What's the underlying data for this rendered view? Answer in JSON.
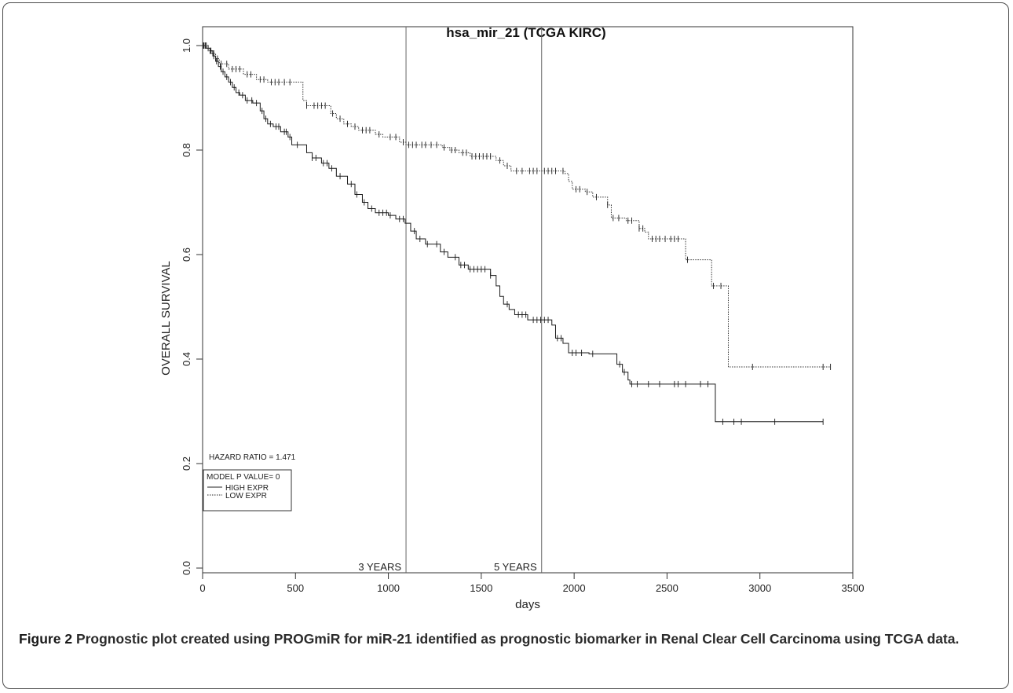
{
  "chart_data": {
    "type": "line",
    "title": "hsa_mir_21 (TCGA KIRC)",
    "xlabel": "days",
    "ylabel": "OVERALL SURVIVAL",
    "xlim": [
      0,
      3500
    ],
    "ylim": [
      0,
      1.0
    ],
    "x_ticks": [
      0,
      500,
      1000,
      1500,
      2000,
      2500,
      3000,
      3500
    ],
    "y_ticks": [
      0.0,
      0.2,
      0.4,
      0.6,
      0.8,
      1.0
    ],
    "y_tick_labels": [
      "0.0",
      "0.2",
      "0.4",
      "0.6",
      "0.8",
      "1.0"
    ],
    "grid": false,
    "vlines": [
      {
        "x": 1095,
        "label": "3 YEARS"
      },
      {
        "x": 1825,
        "label": "5 YEARS"
      }
    ],
    "annotations": {
      "hazard_ratio": "HAZARD RATIO =  1.471",
      "p_value": "MODEL P VALUE=  0"
    },
    "legend_position": "bottom-left",
    "series": [
      {
        "name": "HIGH EXPR",
        "style": "solid",
        "steps": [
          [
            0,
            1.0
          ],
          [
            20,
            0.995
          ],
          [
            40,
            0.99
          ],
          [
            55,
            0.98
          ],
          [
            70,
            0.97
          ],
          [
            85,
            0.96
          ],
          [
            100,
            0.95
          ],
          [
            120,
            0.94
          ],
          [
            140,
            0.93
          ],
          [
            160,
            0.92
          ],
          [
            180,
            0.91
          ],
          [
            200,
            0.905
          ],
          [
            230,
            0.895
          ],
          [
            270,
            0.89
          ],
          [
            310,
            0.875
          ],
          [
            330,
            0.86
          ],
          [
            350,
            0.85
          ],
          [
            380,
            0.845
          ],
          [
            420,
            0.835
          ],
          [
            460,
            0.825
          ],
          [
            480,
            0.81
          ],
          [
            560,
            0.795
          ],
          [
            590,
            0.785
          ],
          [
            640,
            0.775
          ],
          [
            680,
            0.765
          ],
          [
            720,
            0.75
          ],
          [
            780,
            0.735
          ],
          [
            820,
            0.715
          ],
          [
            860,
            0.7
          ],
          [
            890,
            0.688
          ],
          [
            930,
            0.68
          ],
          [
            1000,
            0.675
          ],
          [
            1040,
            0.668
          ],
          [
            1090,
            0.66
          ],
          [
            1120,
            0.645
          ],
          [
            1150,
            0.63
          ],
          [
            1200,
            0.62
          ],
          [
            1280,
            0.605
          ],
          [
            1320,
            0.595
          ],
          [
            1380,
            0.58
          ],
          [
            1430,
            0.572
          ],
          [
            1550,
            0.56
          ],
          [
            1580,
            0.54
          ],
          [
            1600,
            0.52
          ],
          [
            1620,
            0.505
          ],
          [
            1650,
            0.495
          ],
          [
            1680,
            0.485
          ],
          [
            1750,
            0.475
          ],
          [
            1880,
            0.465
          ],
          [
            1900,
            0.44
          ],
          [
            1940,
            0.43
          ],
          [
            1970,
            0.412
          ],
          [
            2080,
            0.41
          ],
          [
            2230,
            0.39
          ],
          [
            2260,
            0.375
          ],
          [
            2290,
            0.36
          ],
          [
            2300,
            0.352
          ],
          [
            2760,
            0.28
          ],
          [
            3340,
            0.28
          ]
        ],
        "censors": [
          5,
          15,
          30,
          45,
          60,
          75,
          95,
          110,
          130,
          150,
          170,
          195,
          215,
          240,
          265,
          290,
          320,
          340,
          365,
          395,
          410,
          440,
          450,
          470,
          510,
          590,
          610,
          650,
          670,
          695,
          740,
          800,
          830,
          870,
          910,
          950,
          970,
          990,
          1010,
          1060,
          1080,
          1140,
          1170,
          1210,
          1260,
          1300,
          1360,
          1390,
          1410,
          1440,
          1460,
          1480,
          1500,
          1520,
          1550,
          1640,
          1700,
          1720,
          1740,
          1780,
          1800,
          1820,
          1840,
          1860,
          1910,
          1930,
          1990,
          2010,
          2040,
          2100,
          2245,
          2270,
          2310,
          2340,
          2400,
          2460,
          2540,
          2560,
          2600,
          2680,
          2720,
          2800,
          2860,
          2900,
          3080,
          3340
        ]
      },
      {
        "name": "LOW EXPR",
        "style": "dotted",
        "steps": [
          [
            0,
            1.0
          ],
          [
            30,
            0.99
          ],
          [
            50,
            0.985
          ],
          [
            70,
            0.975
          ],
          [
            90,
            0.965
          ],
          [
            140,
            0.955
          ],
          [
            220,
            0.945
          ],
          [
            290,
            0.935
          ],
          [
            350,
            0.93
          ],
          [
            540,
            0.895
          ],
          [
            560,
            0.885
          ],
          [
            690,
            0.87
          ],
          [
            720,
            0.86
          ],
          [
            760,
            0.85
          ],
          [
            800,
            0.845
          ],
          [
            840,
            0.838
          ],
          [
            930,
            0.83
          ],
          [
            970,
            0.825
          ],
          [
            1060,
            0.815
          ],
          [
            1095,
            0.81
          ],
          [
            1290,
            0.805
          ],
          [
            1330,
            0.8
          ],
          [
            1380,
            0.795
          ],
          [
            1440,
            0.788
          ],
          [
            1580,
            0.78
          ],
          [
            1620,
            0.77
          ],
          [
            1660,
            0.76
          ],
          [
            1950,
            0.755
          ],
          [
            1970,
            0.74
          ],
          [
            1990,
            0.725
          ],
          [
            2060,
            0.72
          ],
          [
            2100,
            0.71
          ],
          [
            2180,
            0.695
          ],
          [
            2200,
            0.67
          ],
          [
            2280,
            0.665
          ],
          [
            2350,
            0.65
          ],
          [
            2380,
            0.643
          ],
          [
            2400,
            0.63
          ],
          [
            2580,
            0.63
          ],
          [
            2600,
            0.59
          ],
          [
            2740,
            0.54
          ],
          [
            2820,
            0.54
          ],
          [
            2830,
            0.385
          ],
          [
            3380,
            0.385
          ]
        ],
        "censors": [
          8,
          20,
          40,
          60,
          80,
          100,
          130,
          160,
          180,
          200,
          240,
          260,
          310,
          330,
          370,
          390,
          410,
          440,
          470,
          560,
          600,
          620,
          640,
          660,
          700,
          740,
          780,
          820,
          860,
          880,
          900,
          950,
          1010,
          1040,
          1080,
          1110,
          1130,
          1150,
          1180,
          1200,
          1230,
          1260,
          1300,
          1340,
          1360,
          1400,
          1420,
          1450,
          1470,
          1490,
          1510,
          1530,
          1550,
          1600,
          1640,
          1690,
          1720,
          1760,
          1780,
          1800,
          1840,
          1860,
          1880,
          1900,
          1940,
          2010,
          2030,
          2070,
          2120,
          2180,
          2210,
          2240,
          2290,
          2310,
          2350,
          2370,
          2420,
          2440,
          2460,
          2490,
          2520,
          2540,
          2560,
          2610,
          2750,
          2790,
          2960,
          3340,
          3380
        ]
      }
    ]
  },
  "caption": {
    "label": "Figure 2",
    "text": " Prognostic plot created using PROGmiR for miR-21 identified as prognostic biomarker in Renal Clear Cell Carcinoma using TCGA data."
  }
}
